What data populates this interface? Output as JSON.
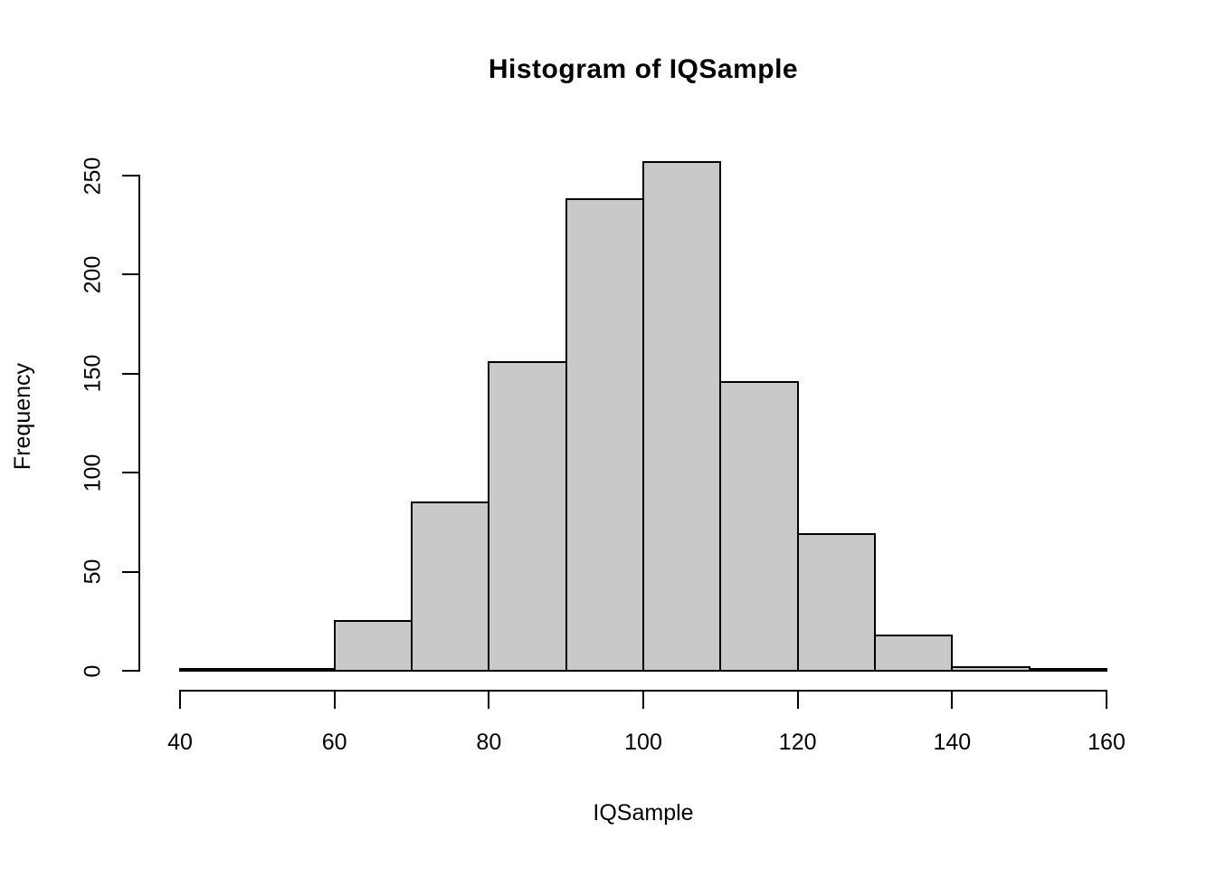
{
  "title": "Histogram of IQSample",
  "chart_data": {
    "type": "bar",
    "subtype": "histogram",
    "title": "Histogram of IQSample",
    "xlabel": "IQSample",
    "ylabel": "Frequency",
    "bin_edges": [
      40,
      50,
      60,
      70,
      80,
      90,
      100,
      110,
      120,
      130,
      140,
      150,
      160
    ],
    "values": [
      1,
      1,
      25,
      85,
      156,
      238,
      257,
      146,
      69,
      18,
      2,
      1
    ],
    "x_ticks": [
      40,
      60,
      80,
      100,
      120,
      140,
      160
    ],
    "y_ticks": [
      0,
      50,
      100,
      150,
      200,
      250
    ],
    "xlim": [
      40,
      160
    ],
    "ylim": [
      0,
      250
    ],
    "grid": false,
    "legend": false,
    "colors": {
      "bar_fill": "#C9C9C9",
      "bar_border": "#000000",
      "axis": "#000000",
      "text": "#000000",
      "background": "#FFFFFF"
    }
  }
}
